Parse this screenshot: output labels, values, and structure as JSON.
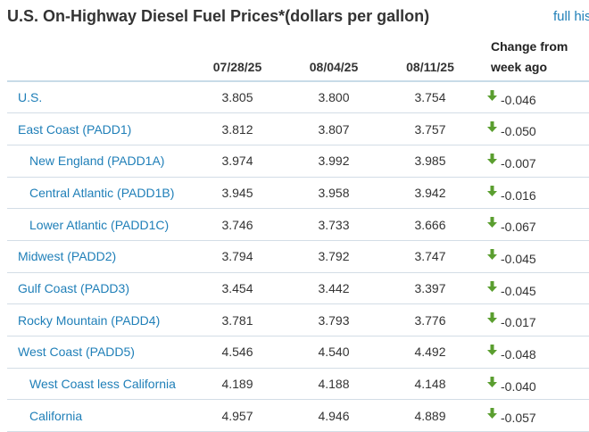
{
  "header": {
    "title": "U.S. On-Highway Diesel Fuel Prices*(dollars per gallon)",
    "link": "full his"
  },
  "table": {
    "columns": [
      "07/28/25",
      "08/04/25",
      "08/11/25"
    ],
    "change_header": [
      "Change from",
      "week ago"
    ],
    "rows": [
      {
        "name": "U.S.",
        "indent": false,
        "values": [
          "3.805",
          "3.800",
          "3.754"
        ],
        "change": "-0.046"
      },
      {
        "name": "East Coast (PADD1)",
        "indent": false,
        "values": [
          "3.812",
          "3.807",
          "3.757"
        ],
        "change": "-0.050"
      },
      {
        "name": "New England (PADD1A)",
        "indent": true,
        "values": [
          "3.974",
          "3.992",
          "3.985"
        ],
        "change": "-0.007"
      },
      {
        "name": "Central Atlantic (PADD1B)",
        "indent": true,
        "values": [
          "3.945",
          "3.958",
          "3.942"
        ],
        "change": "-0.016"
      },
      {
        "name": "Lower Atlantic (PADD1C)",
        "indent": true,
        "values": [
          "3.746",
          "3.733",
          "3.666"
        ],
        "change": "-0.067"
      },
      {
        "name": "Midwest (PADD2)",
        "indent": false,
        "values": [
          "3.794",
          "3.792",
          "3.747"
        ],
        "change": "-0.045"
      },
      {
        "name": "Gulf Coast (PADD3)",
        "indent": false,
        "values": [
          "3.454",
          "3.442",
          "3.397"
        ],
        "change": "-0.045"
      },
      {
        "name": "Rocky Mountain (PADD4)",
        "indent": false,
        "values": [
          "3.781",
          "3.793",
          "3.776"
        ],
        "change": "-0.017"
      },
      {
        "name": "West Coast (PADD5)",
        "indent": false,
        "values": [
          "4.546",
          "4.540",
          "4.492"
        ],
        "change": "-0.048"
      },
      {
        "name": "West Coast less California",
        "indent": true,
        "values": [
          "4.189",
          "4.188",
          "4.148"
        ],
        "change": "-0.040"
      },
      {
        "name": "California",
        "indent": true,
        "values": [
          "4.957",
          "4.946",
          "4.889"
        ],
        "change": "-0.057"
      }
    ]
  },
  "icons": {
    "change_direction": "down-arrow-icon"
  },
  "colors": {
    "link": "#1f7fb8",
    "down_arrow": "#5a9e2f",
    "text": "#333333",
    "header_rule": "#c8dbe8",
    "row_rule": "#d3dde6"
  }
}
